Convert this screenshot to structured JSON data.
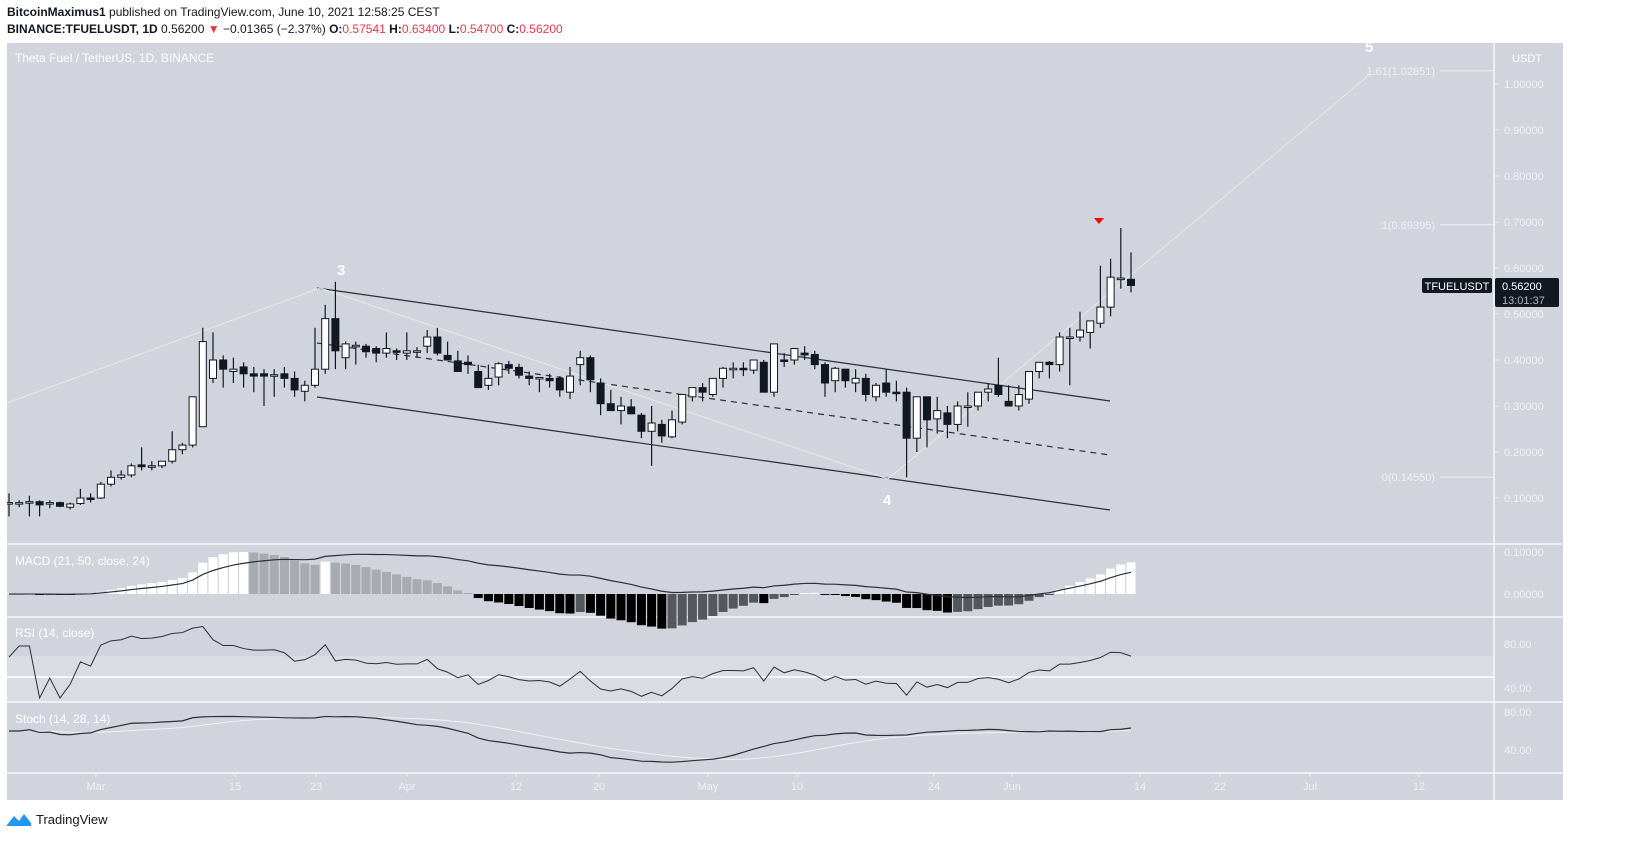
{
  "header": {
    "author": "BitcoinMaximus1",
    "published_text": " published on TradingView.com, June 10, 2021 12:58:25 CEST",
    "symbol": "BINANCE:TFUELUSDT, 1D",
    "last": "0.56200",
    "change": "−0.01365 (−2.37%)",
    "open_label": "O:",
    "open": "0.57541",
    "high_label": "H:",
    "high": "0.63400",
    "low_label": "L:",
    "low": "0.54700",
    "close_label": "C:",
    "close": "0.56200",
    "down_color": "#f23645"
  },
  "chart": {
    "title": "Theta Fuel / TetherUS, 1D, BINANCE",
    "currency": "USDT",
    "price_ticks": [
      "1.00000",
      "0.90000",
      "0.80000",
      "0.70000",
      "0.60000",
      "0.50000",
      "0.40000",
      "0.30000",
      "0.20000",
      "0.10000"
    ],
    "price_tag": {
      "symbol": "TFUELUSDT",
      "price": "0.56200",
      "countdown": "13:01:37"
    },
    "fib_levels": [
      {
        "label": "1.61(1.02851)",
        "value": 1.02851
      },
      {
        "label": "1(0.69395)",
        "value": 0.69395
      },
      {
        "label": "0(0.14550)",
        "value": 0.1455
      }
    ],
    "wave_labels": [
      "3",
      "4",
      "5"
    ],
    "macd": {
      "label": "MACD (21, 50, close, 24)",
      "ticks": [
        "0.10000",
        "0.00000"
      ]
    },
    "rsi": {
      "label": "RSI (14, close)",
      "ticks": [
        "80.00",
        "40.00"
      ]
    },
    "stoch": {
      "label": "Stoch (14, 28, 14)",
      "ticks": [
        "80.00",
        "40.00"
      ]
    },
    "x_ticks": [
      "Mar",
      "15",
      "23",
      "Apr",
      "12",
      "20",
      "May",
      "10",
      "24",
      "Jun",
      "14",
      "22",
      "Jul",
      "12"
    ]
  },
  "footer": {
    "brand": "TradingView"
  },
  "chart_data": {
    "type": "candlestick",
    "title": "Theta Fuel / TetherUS, 1D, BINANCE",
    "xlabel": "",
    "ylabel": "USDT",
    "ylim": [
      0.0,
      1.08
    ],
    "x_tick_labels": [
      "Mar",
      "15",
      "23",
      "Apr",
      "12",
      "20",
      "May",
      "10",
      "24",
      "Jun",
      "14",
      "22",
      "Jul",
      "12"
    ],
    "y_tick_labels": [
      "0.10000",
      "0.20000",
      "0.30000",
      "0.40000",
      "0.50000",
      "0.60000",
      "0.70000",
      "0.80000",
      "0.90000",
      "1.00000"
    ],
    "last_price": 0.562,
    "ohlc_last": {
      "open": 0.57541,
      "high": 0.634,
      "low": 0.547,
      "close": 0.562
    },
    "fibonacci": {
      "0": 0.1455,
      "1": 0.69395,
      "1.61": 1.02851
    },
    "descending_channel": {
      "upper": [
        {
          "date": "Mar 23",
          "price": 0.56
        },
        {
          "date": "Jun 10",
          "price": 0.31
        }
      ],
      "middle": [
        {
          "date": "Mar 23",
          "price": 0.44
        },
        {
          "date": "Jun 10",
          "price": 0.19
        }
      ],
      "lower": [
        {
          "date": "Mar 23",
          "price": 0.32
        },
        {
          "date": "Jun 10",
          "price": 0.07
        }
      ]
    },
    "wave_points": [
      {
        "label": "3",
        "date": "Mar 24",
        "price": 0.565
      },
      {
        "label": "4",
        "date": "May 19",
        "price": 0.145
      },
      {
        "label": "5",
        "date": "Jul 5",
        "price": 1.03
      }
    ],
    "candles": [
      [
        0.09,
        0.11,
        0.06,
        0.09
      ],
      [
        0.09,
        0.095,
        0.08,
        0.09
      ],
      [
        0.09,
        0.105,
        0.06,
        0.092
      ],
      [
        0.092,
        0.095,
        0.06,
        0.085
      ],
      [
        0.088,
        0.095,
        0.078,
        0.09
      ],
      [
        0.09,
        0.092,
        0.08,
        0.082
      ],
      [
        0.08,
        0.09,
        0.075,
        0.087
      ],
      [
        0.088,
        0.12,
        0.085,
        0.1
      ],
      [
        0.1,
        0.11,
        0.09,
        0.098
      ],
      [
        0.1,
        0.135,
        0.098,
        0.13
      ],
      [
        0.13,
        0.16,
        0.125,
        0.145
      ],
      [
        0.145,
        0.16,
        0.14,
        0.15
      ],
      [
        0.15,
        0.175,
        0.145,
        0.17
      ],
      [
        0.172,
        0.21,
        0.16,
        0.168
      ],
      [
        0.168,
        0.18,
        0.16,
        0.17
      ],
      [
        0.17,
        0.18,
        0.165,
        0.18
      ],
      [
        0.18,
        0.245,
        0.175,
        0.205
      ],
      [
        0.205,
        0.22,
        0.195,
        0.215
      ],
      [
        0.215,
        0.26,
        0.21,
        0.32
      ],
      [
        0.255,
        0.47,
        0.255,
        0.44
      ],
      [
        0.36,
        0.46,
        0.35,
        0.4
      ],
      [
        0.4,
        0.41,
        0.34,
        0.38
      ],
      [
        0.375,
        0.405,
        0.35,
        0.38
      ],
      [
        0.385,
        0.395,
        0.34,
        0.37
      ],
      [
        0.37,
        0.385,
        0.33,
        0.365
      ],
      [
        0.37,
        0.38,
        0.3,
        0.365
      ],
      [
        0.365,
        0.38,
        0.32,
        0.368
      ],
      [
        0.37,
        0.385,
        0.34,
        0.36
      ],
      [
        0.36,
        0.375,
        0.32,
        0.335
      ],
      [
        0.332,
        0.355,
        0.31,
        0.345
      ],
      [
        0.345,
        0.47,
        0.34,
        0.38
      ],
      [
        0.38,
        0.52,
        0.37,
        0.49
      ],
      [
        0.49,
        0.57,
        0.38,
        0.42
      ],
      [
        0.405,
        0.44,
        0.38,
        0.435
      ],
      [
        0.43,
        0.44,
        0.39,
        0.432
      ],
      [
        0.43,
        0.435,
        0.405,
        0.418
      ],
      [
        0.425,
        0.43,
        0.395,
        0.415
      ],
      [
        0.415,
        0.46,
        0.405,
        0.425
      ],
      [
        0.42,
        0.425,
        0.4,
        0.418
      ],
      [
        0.415,
        0.46,
        0.4,
        0.42
      ],
      [
        0.418,
        0.428,
        0.405,
        0.42
      ],
      [
        0.43,
        0.465,
        0.415,
        0.45
      ],
      [
        0.45,
        0.47,
        0.41,
        0.415
      ],
      [
        0.41,
        0.44,
        0.4,
        0.4
      ],
      [
        0.398,
        0.42,
        0.39,
        0.375
      ],
      [
        0.395,
        0.41,
        0.37,
        0.39
      ],
      [
        0.375,
        0.39,
        0.35,
        0.34
      ],
      [
        0.345,
        0.39,
        0.335,
        0.36
      ],
      [
        0.363,
        0.395,
        0.345,
        0.392
      ],
      [
        0.39,
        0.398,
        0.37,
        0.382
      ],
      [
        0.384,
        0.392,
        0.36,
        0.367
      ],
      [
        0.365,
        0.375,
        0.345,
        0.36
      ],
      [
        0.36,
        0.362,
        0.33,
        0.362
      ],
      [
        0.36,
        0.37,
        0.34,
        0.355
      ],
      [
        0.36,
        0.365,
        0.32,
        0.335
      ],
      [
        0.33,
        0.385,
        0.315,
        0.365
      ],
      [
        0.39,
        0.42,
        0.345,
        0.405
      ],
      [
        0.405,
        0.41,
        0.33,
        0.357
      ],
      [
        0.35,
        0.36,
        0.28,
        0.305
      ],
      [
        0.305,
        0.335,
        0.29,
        0.29
      ],
      [
        0.29,
        0.32,
        0.26,
        0.3
      ],
      [
        0.298,
        0.315,
        0.285,
        0.283
      ],
      [
        0.28,
        0.285,
        0.23,
        0.245
      ],
      [
        0.245,
        0.3,
        0.17,
        0.263
      ],
      [
        0.26,
        0.27,
        0.22,
        0.235
      ],
      [
        0.233,
        0.29,
        0.23,
        0.27
      ],
      [
        0.265,
        0.32,
        0.26,
        0.325
      ],
      [
        0.32,
        0.34,
        0.31,
        0.34
      ],
      [
        0.34,
        0.35,
        0.31,
        0.33
      ],
      [
        0.325,
        0.36,
        0.32,
        0.36
      ],
      [
        0.36,
        0.385,
        0.34,
        0.382
      ],
      [
        0.38,
        0.395,
        0.36,
        0.382
      ],
      [
        0.382,
        0.395,
        0.365,
        0.38
      ],
      [
        0.378,
        0.392,
        0.37,
        0.4
      ],
      [
        0.395,
        0.4,
        0.34,
        0.33
      ],
      [
        0.33,
        0.43,
        0.32,
        0.435
      ],
      [
        0.4,
        0.415,
        0.385,
        0.398
      ],
      [
        0.4,
        0.425,
        0.39,
        0.425
      ],
      [
        0.415,
        0.43,
        0.4,
        0.411
      ],
      [
        0.412,
        0.42,
        0.38,
        0.39
      ],
      [
        0.39,
        0.395,
        0.32,
        0.35
      ],
      [
        0.355,
        0.385,
        0.33,
        0.382
      ],
      [
        0.38,
        0.375,
        0.34,
        0.355
      ],
      [
        0.35,
        0.38,
        0.33,
        0.36
      ],
      [
        0.36,
        0.37,
        0.31,
        0.325
      ],
      [
        0.32,
        0.35,
        0.31,
        0.345
      ],
      [
        0.35,
        0.38,
        0.32,
        0.33
      ],
      [
        0.33,
        0.355,
        0.31,
        0.328
      ],
      [
        0.33,
        0.34,
        0.145,
        0.23
      ],
      [
        0.23,
        0.3,
        0.2,
        0.32
      ],
      [
        0.32,
        0.31,
        0.21,
        0.27
      ],
      [
        0.272,
        0.32,
        0.24,
        0.29
      ],
      [
        0.285,
        0.3,
        0.23,
        0.26
      ],
      [
        0.26,
        0.31,
        0.245,
        0.3
      ],
      [
        0.3,
        0.33,
        0.255,
        0.3
      ],
      [
        0.3,
        0.33,
        0.29,
        0.33
      ],
      [
        0.33,
        0.35,
        0.31,
        0.337
      ],
      [
        0.345,
        0.405,
        0.32,
        0.325
      ],
      [
        0.31,
        0.345,
        0.3,
        0.3
      ],
      [
        0.3,
        0.345,
        0.29,
        0.325
      ],
      [
        0.315,
        0.345,
        0.305,
        0.375
      ],
      [
        0.375,
        0.385,
        0.36,
        0.395
      ],
      [
        0.395,
        0.398,
        0.36,
        0.39
      ],
      [
        0.39,
        0.46,
        0.375,
        0.45
      ],
      [
        0.45,
        0.47,
        0.345,
        0.45
      ],
      [
        0.45,
        0.505,
        0.44,
        0.465
      ],
      [
        0.46,
        0.485,
        0.425,
        0.485
      ],
      [
        0.48,
        0.605,
        0.47,
        0.515
      ],
      [
        0.515,
        0.62,
        0.495,
        0.58
      ],
      [
        0.575,
        0.687,
        0.555,
        0.578
      ],
      [
        0.57541,
        0.634,
        0.547,
        0.562
      ]
    ],
    "series": [
      {
        "name": "MACD line",
        "type": "line",
        "approx_range": [
          -0.01,
          0.095
        ]
      },
      {
        "name": "MACD histogram",
        "type": "bar"
      },
      {
        "name": "RSI (14)",
        "type": "line",
        "values_sample": [
          78,
          62,
          55,
          72,
          84,
          70,
          58,
          50,
          43,
          52,
          55,
          40,
          48,
          53,
          63,
          77,
          74
        ]
      },
      {
        "name": "Stoch %K",
        "type": "line",
        "values_sample": [
          70,
          68,
          78,
          65,
          55,
          40,
          30,
          35,
          60,
          78,
          70,
          50,
          45,
          48,
          60,
          76,
          80
        ]
      },
      {
        "name": "Stoch %D",
        "type": "line",
        "values_sample": [
          70,
          75,
          73,
          65,
          50,
          38,
          38,
          50,
          62,
          67,
          70,
          71,
          73,
          74
        ]
      }
    ]
  }
}
